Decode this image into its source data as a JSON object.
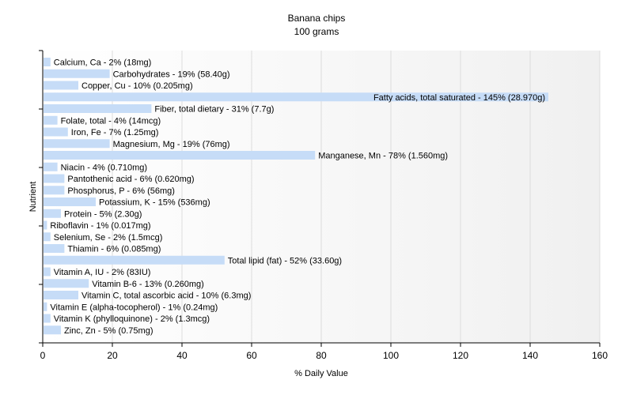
{
  "chart_data": {
    "type": "bar",
    "orientation": "horizontal",
    "title": "Banana chips",
    "subtitle": "100 grams",
    "xlabel": "% Daily Value",
    "ylabel": "Nutrient",
    "xlim": [
      0,
      160
    ],
    "xticks": [
      "0",
      "20",
      "40",
      "60",
      "80",
      "100",
      "120",
      "140",
      "160"
    ],
    "grid": true,
    "bar_color": "#c6dcf7",
    "bars": [
      {
        "label": "Calcium, Ca - 2% (18mg)",
        "value": 2
      },
      {
        "label": "Carbohydrates - 19% (58.40g)",
        "value": 19
      },
      {
        "label": "Copper, Cu - 10% (0.205mg)",
        "value": 10
      },
      {
        "label": "Fatty acids, total saturated - 145% (28.970g)",
        "value": 145
      },
      {
        "label": "Fiber, total dietary - 31% (7.7g)",
        "value": 31
      },
      {
        "label": "Folate, total - 4% (14mcg)",
        "value": 4
      },
      {
        "label": "Iron, Fe - 7% (1.25mg)",
        "value": 7
      },
      {
        "label": "Magnesium, Mg - 19% (76mg)",
        "value": 19
      },
      {
        "label": "Manganese, Mn - 78% (1.560mg)",
        "value": 78
      },
      {
        "label": "Niacin - 4% (0.710mg)",
        "value": 4
      },
      {
        "label": "Pantothenic acid - 6% (0.620mg)",
        "value": 6
      },
      {
        "label": "Phosphorus, P - 6% (56mg)",
        "value": 6
      },
      {
        "label": "Potassium, K - 15% (536mg)",
        "value": 15
      },
      {
        "label": "Protein - 5% (2.30g)",
        "value": 5
      },
      {
        "label": "Riboflavin - 1% (0.017mg)",
        "value": 1
      },
      {
        "label": "Selenium, Se - 2% (1.5mcg)",
        "value": 2
      },
      {
        "label": "Thiamin - 6% (0.085mg)",
        "value": 6
      },
      {
        "label": "Total lipid (fat) - 52% (33.60g)",
        "value": 52
      },
      {
        "label": "Vitamin A, IU - 2% (83IU)",
        "value": 2
      },
      {
        "label": "Vitamin B-6 - 13% (0.260mg)",
        "value": 13
      },
      {
        "label": "Vitamin C, total ascorbic acid - 10% (6.3mg)",
        "value": 10
      },
      {
        "label": "Vitamin E (alpha-tocopherol) - 1% (0.24mg)",
        "value": 1
      },
      {
        "label": "Vitamin K (phylloquinone) - 2% (1.3mcg)",
        "value": 2
      },
      {
        "label": "Zinc, Zn - 5% (0.75mg)",
        "value": 5
      }
    ]
  }
}
